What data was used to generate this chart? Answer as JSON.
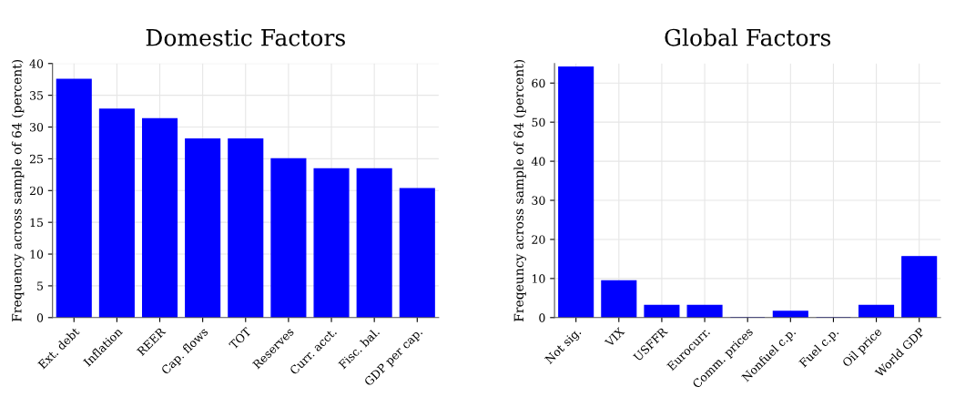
{
  "chart_data": [
    {
      "type": "bar",
      "title": "Domestic Factors",
      "ylabel": "Frequency across sample of 64 (percent)",
      "categories": [
        "Ext. debt",
        "Inflation",
        "REER",
        "Cap. flows",
        "TOT",
        "Reserves",
        "Curr. acct.",
        "Fisc. bal.",
        "GDP per cap."
      ],
      "values": [
        37.5,
        32.8,
        31.3,
        28.1,
        28.1,
        25.0,
        23.4,
        23.4,
        20.3
      ],
      "color": "#0000ff",
      "ylim": [
        0,
        40
      ],
      "yticks": [
        0,
        5,
        10,
        15,
        20,
        25,
        30,
        35,
        40
      ],
      "grid": true
    },
    {
      "type": "bar",
      "title": "Global Factors",
      "ylabel": "Freqeuncy across sample of 64 (percent)",
      "categories": [
        "Not sig.",
        "VIX",
        "USFFR",
        "Eurocurr.",
        "Comm. prices",
        "Nonfuel c.p.",
        "Fuel c.p.",
        "Oil price",
        "World GDP"
      ],
      "values": [
        64.1,
        9.4,
        3.1,
        3.1,
        0,
        1.6,
        0,
        3.1,
        15.6
      ],
      "color": "#0000ff",
      "ylim": [
        0,
        65
      ],
      "yticks": [
        0,
        10,
        20,
        30,
        40,
        50,
        60
      ],
      "grid": true
    }
  ]
}
